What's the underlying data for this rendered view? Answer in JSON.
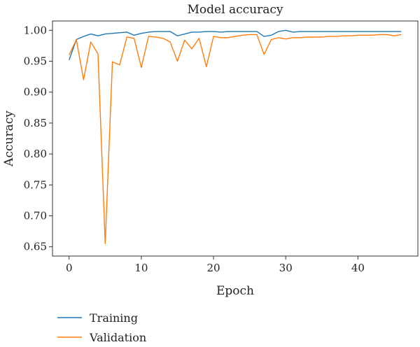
{
  "chart_data": {
    "type": "line",
    "title": "Model accuracy",
    "xlabel": "Epoch",
    "ylabel": "Accuracy",
    "xlim": [
      -2.3,
      48.3
    ],
    "ylim": [
      0.635,
      1.015
    ],
    "xticks": [
      0,
      10,
      20,
      30,
      40
    ],
    "xtick_labels": [
      "0",
      "10",
      "20",
      "30",
      "40"
    ],
    "yticks": [
      0.65,
      0.7,
      0.75,
      0.8,
      0.85,
      0.9,
      0.95,
      1.0
    ],
    "ytick_labels": [
      "0.65",
      "0.70",
      "0.75",
      "0.80",
      "0.85",
      "0.90",
      "0.95",
      "1.00"
    ],
    "grid": false,
    "legend_position": "below-left",
    "x": [
      0,
      1,
      2,
      3,
      4,
      5,
      6,
      7,
      8,
      9,
      10,
      11,
      12,
      13,
      14,
      15,
      16,
      17,
      18,
      19,
      20,
      21,
      22,
      23,
      24,
      25,
      26,
      27,
      28,
      29,
      30,
      31,
      32,
      33,
      34,
      35,
      36,
      37,
      38,
      39,
      40,
      41,
      42,
      43,
      44,
      45,
      46
    ],
    "series": [
      {
        "name": "Training",
        "color": "#1f77b4",
        "values": [
          0.952,
          0.985,
          0.99,
          0.994,
          0.991,
          0.994,
          0.995,
          0.996,
          0.997,
          0.992,
          0.995,
          0.997,
          0.998,
          0.998,
          0.998,
          0.991,
          0.994,
          0.997,
          0.997,
          0.998,
          0.998,
          0.997,
          0.998,
          0.998,
          0.998,
          0.998,
          0.998,
          0.99,
          0.992,
          0.998,
          1.0,
          0.997,
          0.998,
          0.998,
          0.998,
          0.998,
          0.998,
          0.998,
          0.998,
          0.998,
          0.998,
          0.998,
          0.998,
          0.998,
          0.998,
          0.998,
          0.998
        ]
      },
      {
        "name": "Validation",
        "color": "#ff7f0e",
        "values": [
          0.96,
          0.985,
          0.92,
          0.981,
          0.962,
          0.655,
          0.949,
          0.944,
          0.989,
          0.987,
          0.94,
          0.99,
          0.989,
          0.987,
          0.981,
          0.95,
          0.984,
          0.97,
          0.987,
          0.941,
          0.99,
          0.988,
          0.988,
          0.99,
          0.992,
          0.993,
          0.993,
          0.961,
          0.985,
          0.988,
          0.986,
          0.988,
          0.988,
          0.989,
          0.989,
          0.989,
          0.99,
          0.99,
          0.991,
          0.991,
          0.992,
          0.992,
          0.992,
          0.993,
          0.993,
          0.991,
          0.993
        ]
      }
    ]
  }
}
